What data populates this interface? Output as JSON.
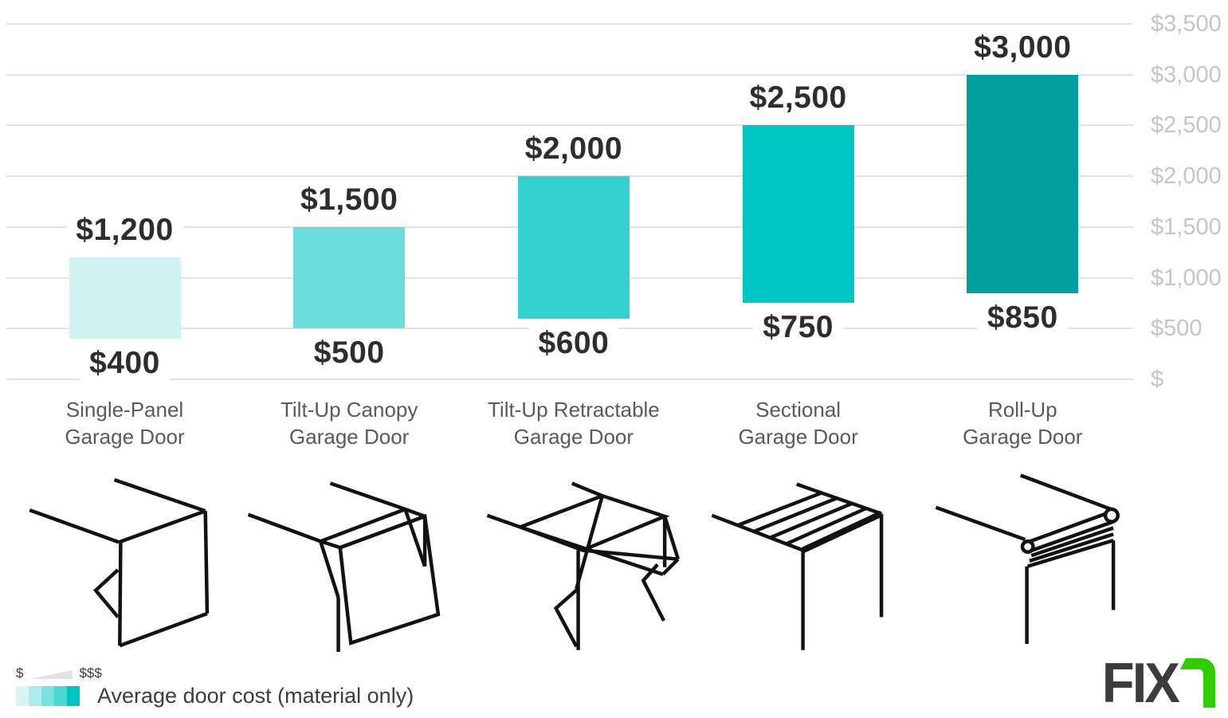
{
  "chart_data": {
    "type": "bar",
    "subtype": "floating-range-columns",
    "title": "",
    "xlabel": "",
    "ylabel": "",
    "ylim": [
      0,
      3500
    ],
    "grid": true,
    "y_axis_side": "right",
    "y_ticks": [
      {
        "value": 0,
        "label": "$"
      },
      {
        "value": 500,
        "label": "$500"
      },
      {
        "value": 1000,
        "label": "$1,000"
      },
      {
        "value": 1500,
        "label": "$1,500"
      },
      {
        "value": 2000,
        "label": "$2,000"
      },
      {
        "value": 2500,
        "label": "$2,500"
      },
      {
        "value": 3000,
        "label": "$3,000"
      },
      {
        "value": 3500,
        "label": "$3,500"
      }
    ],
    "categories": [
      "Single-Panel Garage Door",
      "Tilt-Up Canopy Garage Door",
      "Tilt-Up Retractable Garage Door",
      "Sectional Garage Door",
      "Roll-Up Garage Door"
    ],
    "bars": [
      {
        "label_lines": [
          "Single-Panel",
          "Garage Door"
        ],
        "min": 400,
        "max": 1200,
        "min_label": "$400",
        "max_label": "$1,200",
        "color": "#cff2f2",
        "icon": "single-panel-garage-door-icon"
      },
      {
        "label_lines": [
          "Tilt-Up Canopy",
          "Garage Door"
        ],
        "min": 500,
        "max": 1500,
        "min_label": "$500",
        "max_label": "$1,500",
        "color": "#6cdcdc",
        "icon": "tilt-up-canopy-garage-door-icon"
      },
      {
        "label_lines": [
          "Tilt-Up Retractable",
          "Garage Door"
        ],
        "min": 600,
        "max": 2000,
        "min_label": "$600",
        "max_label": "$2,000",
        "color": "#35d1d1",
        "icon": "tilt-up-retractable-garage-door-icon"
      },
      {
        "label_lines": [
          "Sectional",
          "Garage Door"
        ],
        "min": 750,
        "max": 2500,
        "min_label": "$750",
        "max_label": "$2,500",
        "color": "#00c5c5",
        "icon": "sectional-garage-door-icon"
      },
      {
        "label_lines": [
          "Roll-Up",
          "Garage Door"
        ],
        "min": 850,
        "max": 3000,
        "min_label": "$850",
        "max_label": "$3,000",
        "color": "#009e9e",
        "icon": "roll-up-garage-door-icon"
      }
    ],
    "legend": {
      "min_symbol": "$",
      "max_symbol": "$$$",
      "label": "Average door cost (material only)",
      "swatch_colors": [
        "#d9f4f4",
        "#aeebeb",
        "#7ce0e0",
        "#4cd7d7",
        "#00c4c4"
      ],
      "wedge_color": "#e2e2e2"
    },
    "colors": {
      "gridline": "#e4e4e4",
      "axis_label": "#c5c5c5",
      "value_label": "#2d2d2d",
      "category_label": "#5a5a5a",
      "icon_stroke": "#121212"
    }
  },
  "branding": {
    "logo_text_dark": "FIX",
    "logo_text_green": "r",
    "logo_dark_color": "#3b3b3b",
    "logo_green_color": "#2fcc00"
  }
}
